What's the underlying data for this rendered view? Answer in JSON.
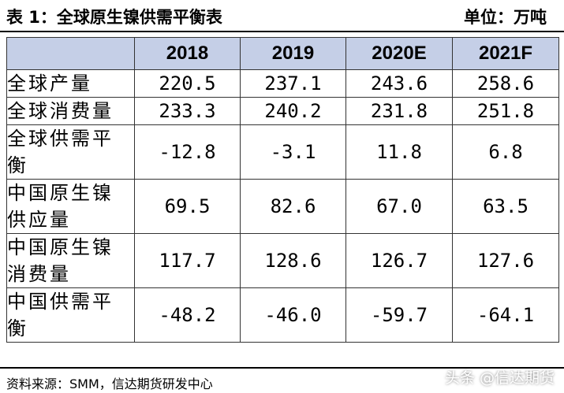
{
  "title": "表 1：全球原生镍供需平衡表",
  "unit": "单位：万吨",
  "table": {
    "headers": [
      "",
      "2018",
      "2019",
      "2020E",
      "2021F"
    ],
    "rows": [
      {
        "label": "全球产量",
        "values": [
          "220.5",
          "237.1",
          "243.6",
          "258.6"
        ]
      },
      {
        "label": "全球消费量",
        "values": [
          "233.3",
          "240.2",
          "231.8",
          "251.8"
        ]
      },
      {
        "label": "全球供需平衡",
        "values": [
          "-12.8",
          "-3.1",
          "11.8",
          "6.8"
        ]
      },
      {
        "label": "中国原生镍供应量",
        "values": [
          "69.5",
          "82.6",
          "67.0",
          "63.5"
        ]
      },
      {
        "label": "中国原生镍消费量",
        "values": [
          "117.7",
          "128.6",
          "126.7",
          "127.6"
        ]
      },
      {
        "label": "中国供需平衡",
        "values": [
          "-48.2",
          "-46.0",
          "-59.7",
          "-64.1"
        ]
      }
    ]
  },
  "source": "资料来源：SMM，信达期货研发中心",
  "watermark": {
    "logo": "头条",
    "handle": "@信达期货"
  }
}
